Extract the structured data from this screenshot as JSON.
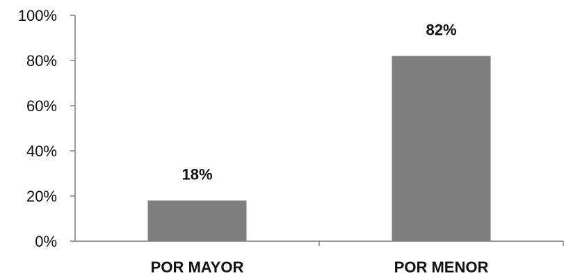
{
  "chart_data": {
    "type": "bar",
    "categories": [
      "POR MAYOR",
      "POR MENOR"
    ],
    "values": [
      18,
      82
    ],
    "data_labels": [
      "18%",
      "82%"
    ],
    "title": "",
    "xlabel": "",
    "ylabel": "",
    "ylim": [
      0,
      100
    ],
    "yticks": [
      0,
      20,
      40,
      60,
      80,
      100
    ],
    "ytick_labels": [
      "0%",
      "20%",
      "40%",
      "60%",
      "80%",
      "100%"
    ],
    "grid": false,
    "legend": "none",
    "bar_color": "#7f7f7f",
    "axis_color": "#7f7f7f"
  }
}
